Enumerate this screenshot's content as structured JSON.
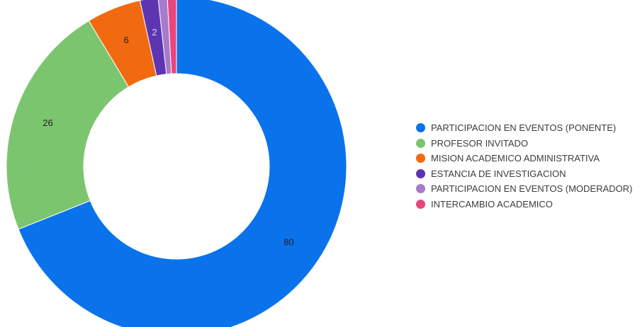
{
  "chart_data": {
    "type": "pie",
    "donut": true,
    "legend_position": "right",
    "categories": [
      "PARTICIPACION EN EVENTOS (PONENTE)",
      "PROFESOR INVITADO",
      "MISION ACADEMICO ADMINISTRATIVA",
      "ESTANCIA DE INVESTIGACION",
      "PARTICIPACION EN EVENTOS (MODERADOR)",
      "INTERCAMBIO ACADEMICO"
    ],
    "values": [
      80,
      26,
      6,
      2,
      1,
      1
    ],
    "data_labels": [
      "80",
      "26",
      "6",
      "2",
      "",
      ""
    ],
    "colors": [
      "#0a73eb",
      "#7cc56f",
      "#f26a0f",
      "#5e35b1",
      "#a77bca",
      "#e8467c"
    ],
    "label_colors": [
      "#222222",
      "#222222",
      "#222222",
      "#d8cff0",
      "#222222",
      "#222222"
    ]
  }
}
